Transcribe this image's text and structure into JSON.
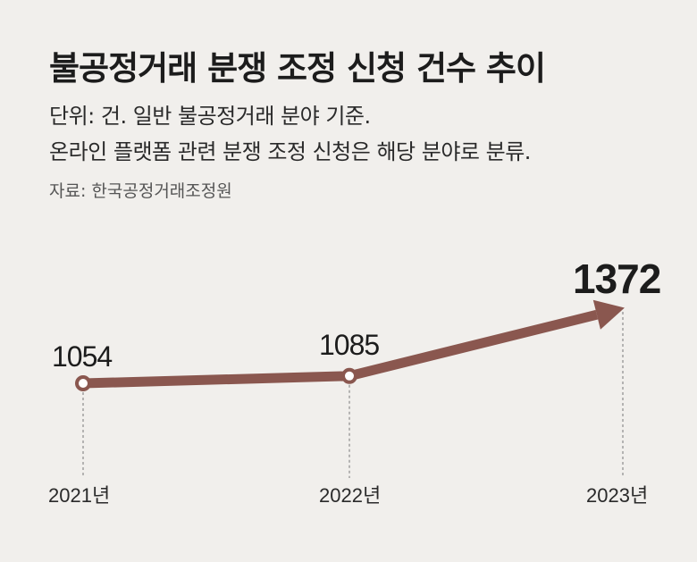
{
  "header": {
    "title": "불공정거래 분쟁 조정 신청 건수 추이",
    "subtitle_line1": "단위: 건. 일반 불공정거래 분야 기준.",
    "subtitle_line2": "온라인 플랫폼 관련 분쟁 조정 신청은 해당 분야로 분류.",
    "source": "자료: 한국공정거래조정원"
  },
  "colors": {
    "background": "#f1efec",
    "line": "#8a574f",
    "guide": "#777777"
  },
  "chart_data": {
    "type": "line",
    "categories": [
      "2021년",
      "2022년",
      "2023년"
    ],
    "values": [
      1054,
      1085,
      1372
    ],
    "value_labels": [
      "1054",
      "1085",
      "1372"
    ],
    "arrow_end": true,
    "grid": false
  }
}
